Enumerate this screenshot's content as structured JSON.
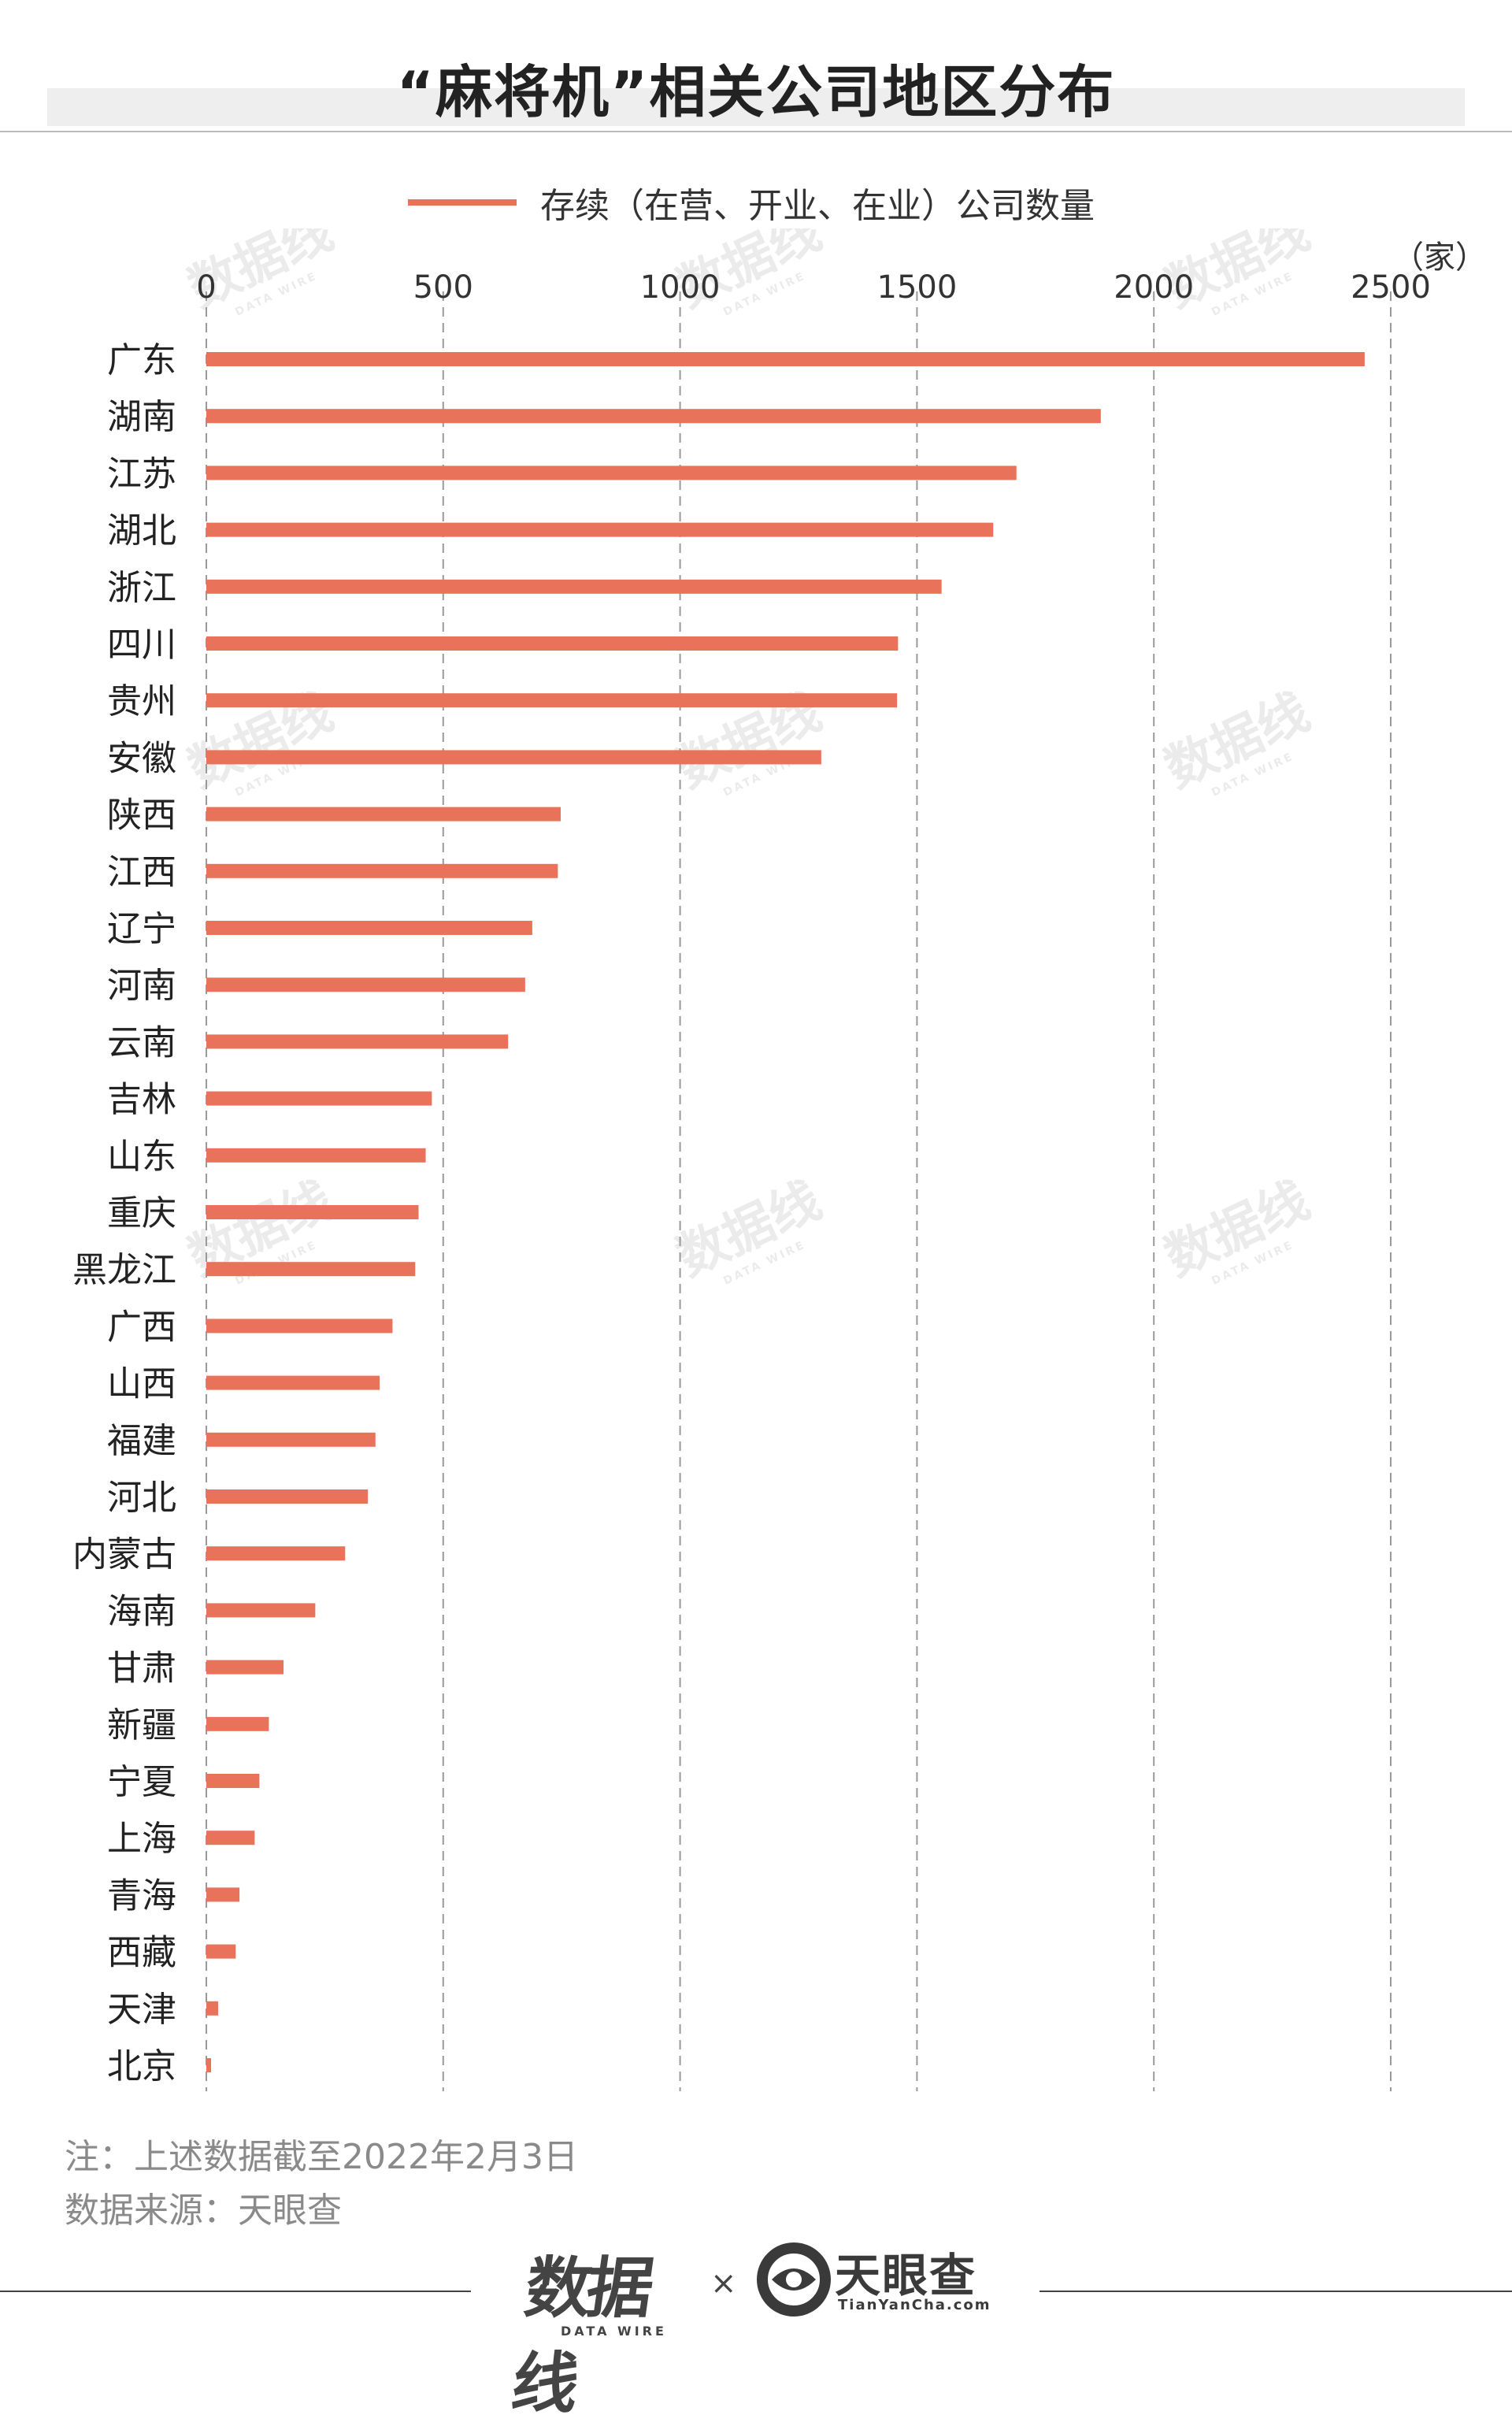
{
  "title": "“麻将机”相关公司地区分布",
  "legend": {
    "label": "存续（在营、开业、在业）公司数量",
    "color": "#e8735a"
  },
  "chart_data": {
    "type": "bar",
    "orientation": "horizontal",
    "unit": "（家）",
    "x_ticks": [
      0,
      500,
      1000,
      1500,
      2000,
      2500
    ],
    "xlim": [
      0,
      2500
    ],
    "grid": "dashed-vertical",
    "bar_color": "#e8735a",
    "categories": [
      "广东",
      "湖南",
      "江苏",
      "湖北",
      "浙江",
      "四川",
      "贵州",
      "安徽",
      "陕西",
      "江西",
      "辽宁",
      "河南",
      "云南",
      "吉林",
      "山东",
      "重庆",
      "黑龙江",
      "广西",
      "山西",
      "福建",
      "河北",
      "内蒙古",
      "海南",
      "甘肃",
      "新疆",
      "宁夏",
      "上海",
      "青海",
      "西藏",
      "天津",
      "北京"
    ],
    "series": [
      {
        "name": "存续（在营、开业、在业）公司数量",
        "values": [
          2445,
          1888,
          1710,
          1661,
          1552,
          1460,
          1458,
          1298,
          748,
          742,
          688,
          673,
          637,
          476,
          463,
          448,
          441,
          393,
          366,
          357,
          341,
          293,
          230,
          163,
          132,
          112,
          102,
          70,
          62,
          25,
          10
        ]
      }
    ]
  },
  "footnotes": {
    "note": "注：上述数据截至2022年2月3日",
    "source": "数据来源：天眼查"
  },
  "footer": {
    "left_logo_mark": "数据线",
    "left_logo_sub": "DATA WIRE",
    "cross": "×",
    "right_logo_name": "天眼查",
    "right_logo_url": "TianYanCha.com"
  },
  "watermark": {
    "mark": "数据线",
    "sub": "DATA WIRE"
  }
}
